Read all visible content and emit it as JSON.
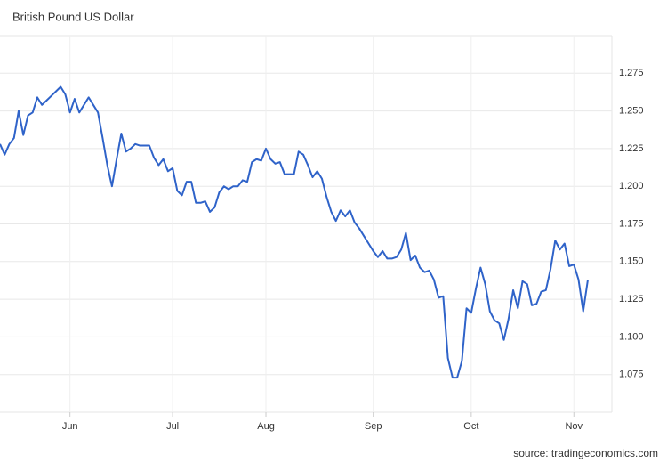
{
  "chart_data": {
    "type": "line",
    "title": "British Pound US Dollar",
    "source": "source: tradingeconomics.com",
    "color": "#2f63c9",
    "grid": true,
    "categories": [
      null,
      null,
      null,
      null,
      null,
      null,
      null,
      null,
      null,
      null,
      null,
      null,
      null,
      null,
      null,
      "Jun",
      null,
      null,
      null,
      null,
      null,
      null,
      null,
      null,
      null,
      null,
      null,
      null,
      null,
      null,
      null,
      null,
      null,
      null,
      null,
      null,
      null,
      "Jul",
      null,
      null,
      null,
      null,
      null,
      null,
      null,
      null,
      null,
      null,
      null,
      null,
      null,
      null,
      null,
      null,
      null,
      null,
      null,
      "Aug",
      null,
      null,
      null,
      null,
      null,
      null,
      null,
      null,
      null,
      null,
      null,
      null,
      null,
      null,
      null,
      null,
      null,
      null,
      null,
      null,
      null,
      null,
      "Sep",
      null,
      null,
      null,
      null,
      null,
      null,
      null,
      null,
      null,
      null,
      null,
      null,
      null,
      null,
      null,
      null,
      null,
      null,
      null,
      null,
      "Oct",
      null,
      null,
      null,
      null,
      null,
      null,
      null,
      null,
      null,
      null,
      null,
      null,
      null,
      null,
      null,
      null,
      null,
      null,
      null,
      null,
      null,
      "Nov",
      null,
      null,
      null
    ],
    "values": [
      1.228,
      1.221,
      1.228,
      1.232,
      1.25,
      1.234,
      1.247,
      1.249,
      1.259,
      1.254,
      1.257,
      1.26,
      1.263,
      1.266,
      1.261,
      1.249,
      1.258,
      1.249,
      1.254,
      1.259,
      1.254,
      1.249,
      1.232,
      1.214,
      1.2,
      1.218,
      1.235,
      1.223,
      1.225,
      1.228,
      1.227,
      1.227,
      1.227,
      1.219,
      1.214,
      1.218,
      1.21,
      1.212,
      1.197,
      1.194,
      1.203,
      1.203,
      1.189,
      1.189,
      1.19,
      1.183,
      1.186,
      1.196,
      1.2,
      1.198,
      1.2,
      1.2,
      1.204,
      1.203,
      1.216,
      1.218,
      1.217,
      1.225,
      1.218,
      1.215,
      1.216,
      1.208,
      1.208,
      1.208,
      1.223,
      1.221,
      1.214,
      1.206,
      1.21,
      1.205,
      1.193,
      1.183,
      1.177,
      1.184,
      1.18,
      1.184,
      1.176,
      1.172,
      1.167,
      1.162,
      1.157,
      1.153,
      1.157,
      1.152,
      1.152,
      1.153,
      1.158,
      1.169,
      1.151,
      1.154,
      1.146,
      1.143,
      1.144,
      1.138,
      1.126,
      1.127,
      1.086,
      1.073,
      1.073,
      1.084,
      1.119,
      1.116,
      1.132,
      1.146,
      1.135,
      1.117,
      1.111,
      1.109,
      1.098,
      1.112,
      1.131,
      1.119,
      1.137,
      1.135,
      1.121,
      1.122,
      1.13,
      1.131,
      1.145,
      1.164,
      1.158,
      1.162,
      1.147,
      1.148,
      1.138,
      1.117,
      1.138
    ],
    "ylim": [
      1.05,
      1.3
    ],
    "yticks": [
      1.075,
      {
        "value": 1.1,
        "label": "1.100"
      },
      1.125,
      {
        "value": 1.15,
        "label": "1.150"
      },
      1.175,
      {
        "value": 1.2,
        "label": "1.200"
      },
      1.225,
      {
        "value": 1.25,
        "label": "1.250"
      },
      1.275
    ]
  }
}
